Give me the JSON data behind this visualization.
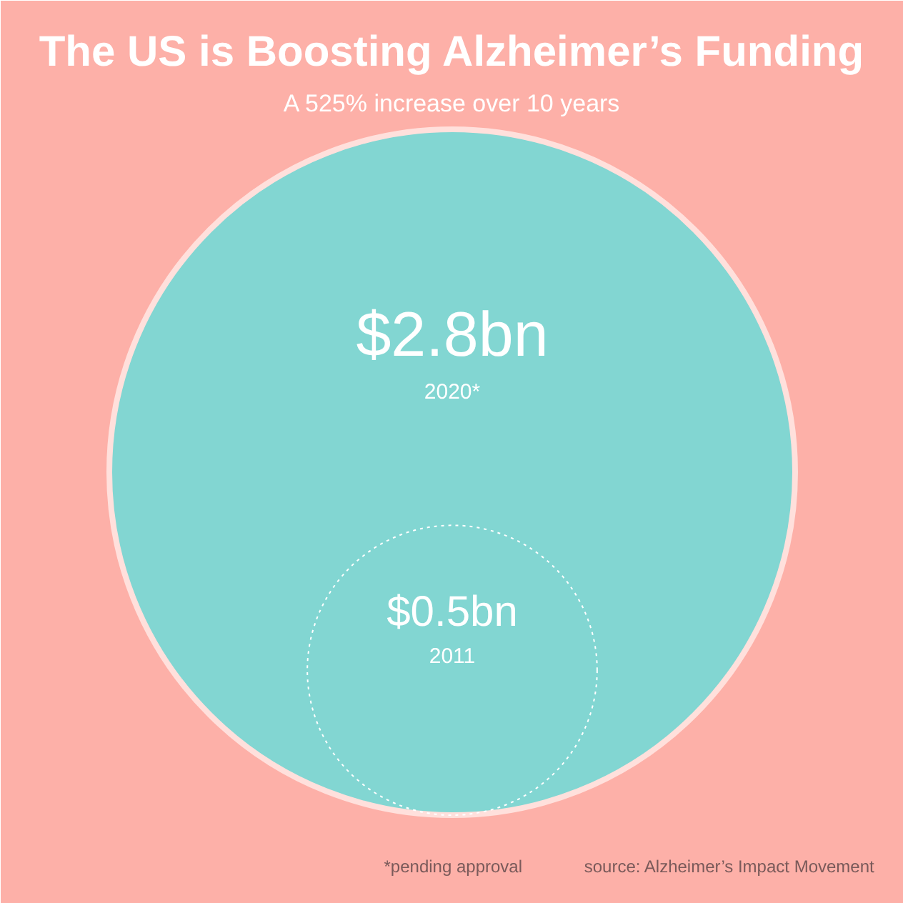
{
  "chart_data": {
    "type": "other",
    "title": "The US is Boosting Alzheimer’s Funding",
    "subtitle": "A 525% increase over 10 years",
    "categories": [
      "2020*",
      "2011"
    ],
    "values": [
      2.8,
      0.5
    ],
    "value_labels": [
      "$2.8bn",
      "$0.5bn"
    ],
    "colors": [
      "#82d6d2",
      "#ffffff"
    ],
    "annotations": [
      "*pending approval",
      "source: Alzheimer’s Impact Movement"
    ]
  }
}
